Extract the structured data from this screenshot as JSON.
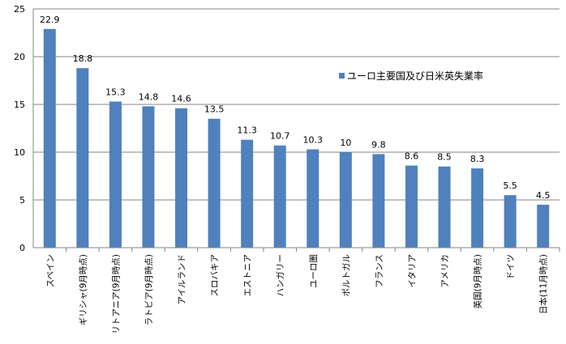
{
  "chart_data": {
    "type": "bar",
    "categories": [
      "スペイン",
      "ギリシャ(9月時点)",
      "リトアニア(9月時点)",
      "ラトビア(9月時点)",
      "アイルランド",
      "スロバキア",
      "エストニア",
      "ハンガリー",
      "ユーロ圏",
      "ポルトガル",
      "フランス",
      "イタリア",
      "アメリカ",
      "英国(9月時点)",
      "ドイツ",
      "日本(11月時点)"
    ],
    "series": [
      {
        "name": "ユーロ主要国及び日米英失業率",
        "values": [
          22.9,
          18.8,
          15.3,
          14.8,
          14.6,
          13.5,
          11.3,
          10.7,
          10.3,
          10,
          9.8,
          8.6,
          8.5,
          8.3,
          5.5,
          4.5
        ],
        "labels": [
          "22.9",
          "18.8",
          "15.3",
          "14.8",
          "14.6",
          "13.5",
          "11.3",
          "10.7",
          "10.3",
          "10",
          "9.8",
          "8.6",
          "8.5",
          "8.3",
          "5.5",
          "4.5"
        ],
        "color": "#4f81bd"
      }
    ],
    "yticks": [
      "0",
      "5",
      "10",
      "15",
      "20",
      "25"
    ],
    "ylim": [
      0,
      25
    ],
    "grid": true,
    "legend_position": "right"
  }
}
